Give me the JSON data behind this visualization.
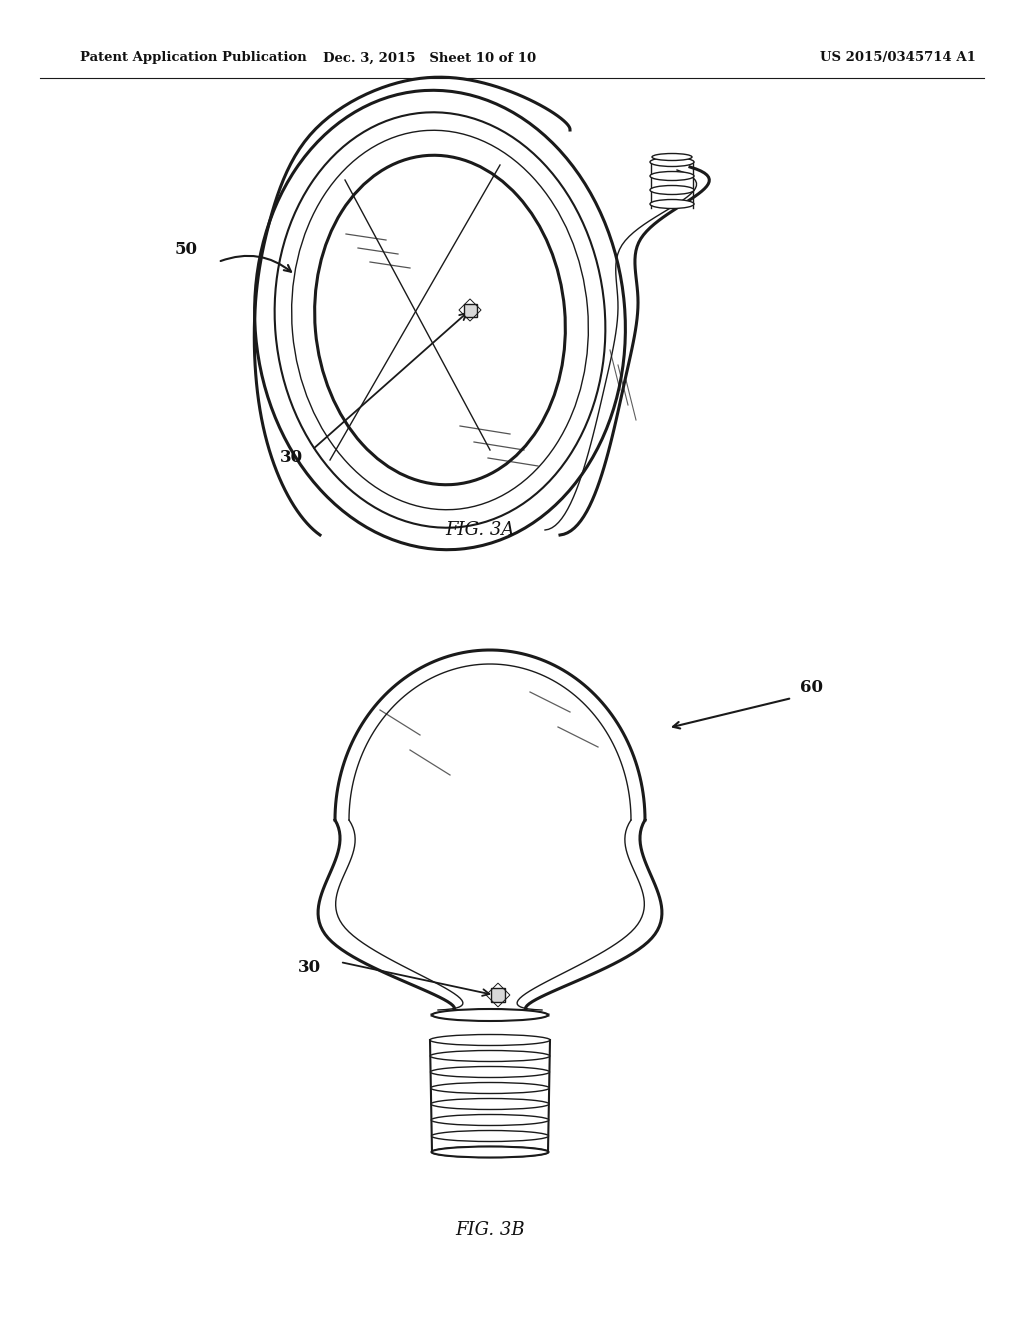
{
  "background_color": "#ffffff",
  "header_left": "Patent Application Publication",
  "header_center": "Dec. 3, 2015   Sheet 10 of 10",
  "header_right": "US 2015/0345714 A1",
  "fig3a_label": "FIG. 3A",
  "fig3b_label": "FIG. 3B",
  "label_50": "50",
  "label_60": "60",
  "label_30a": "30",
  "label_30b": "30",
  "line_color": "#1a1a1a",
  "text_color": "#111111"
}
